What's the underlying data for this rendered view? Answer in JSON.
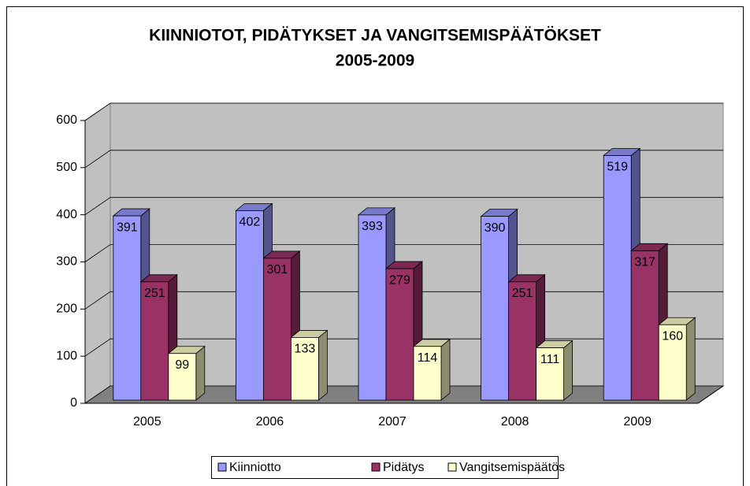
{
  "chart_data": {
    "type": "bar3d",
    "title": "KIINNIOTOT, PIDÄTYKSET JA VANGITSEMISPÄÄTÖKSET",
    "subtitle": "2005-2009",
    "categories": [
      "2005",
      "2006",
      "2007",
      "2008",
      "2009"
    ],
    "series": [
      {
        "name": "Kiinniotto",
        "color": "#9999ff",
        "values": [
          391,
          402,
          393,
          390,
          519
        ]
      },
      {
        "name": "Pidätys",
        "color": "#993366",
        "values": [
          251,
          301,
          279,
          251,
          317
        ]
      },
      {
        "name": "Vangitsemispäätös",
        "color": "#ffffcc",
        "values": [
          99,
          133,
          114,
          111,
          160
        ]
      }
    ],
    "ylim": [
      0,
      600
    ],
    "yticks": [
      0,
      100,
      200,
      300,
      400,
      500,
      600
    ],
    "grid": true,
    "legend": "bottom"
  }
}
